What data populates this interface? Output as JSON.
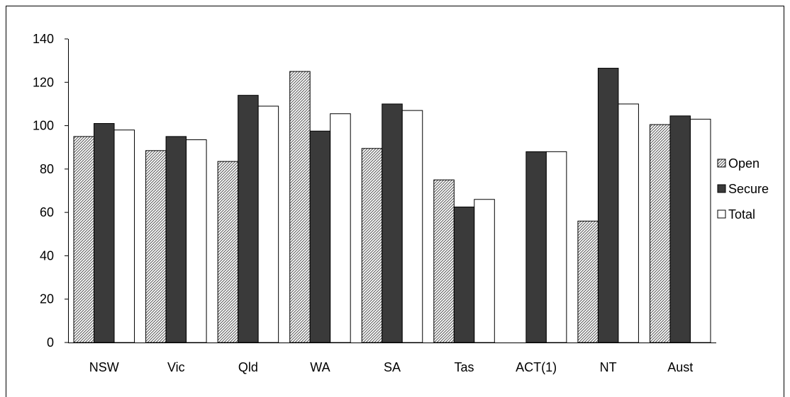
{
  "chart_data": {
    "type": "bar",
    "title": "",
    "xlabel": "",
    "ylabel": "",
    "ylim": [
      0,
      140
    ],
    "yticks": [
      0,
      20,
      40,
      60,
      80,
      100,
      120,
      140
    ],
    "grid": false,
    "legend_position": "right",
    "categories": [
      "NSW",
      "Vic",
      "Qld",
      "WA",
      "SA",
      "Tas",
      "ACT(1)",
      "NT",
      "Aust"
    ],
    "series": [
      {
        "name": "Open",
        "values": [
          95,
          88.5,
          83.5,
          125,
          89.5,
          75,
          null,
          56,
          100.5
        ],
        "pattern": "hatched"
      },
      {
        "name": "Secure",
        "values": [
          101,
          95,
          114,
          97.5,
          110,
          62.5,
          88,
          126.5,
          104.5
        ],
        "color": "#3a3a3a"
      },
      {
        "name": "Total",
        "values": [
          98,
          93.5,
          109,
          105.5,
          107,
          66,
          88,
          110,
          103
        ],
        "color": "#ffffff"
      }
    ]
  }
}
